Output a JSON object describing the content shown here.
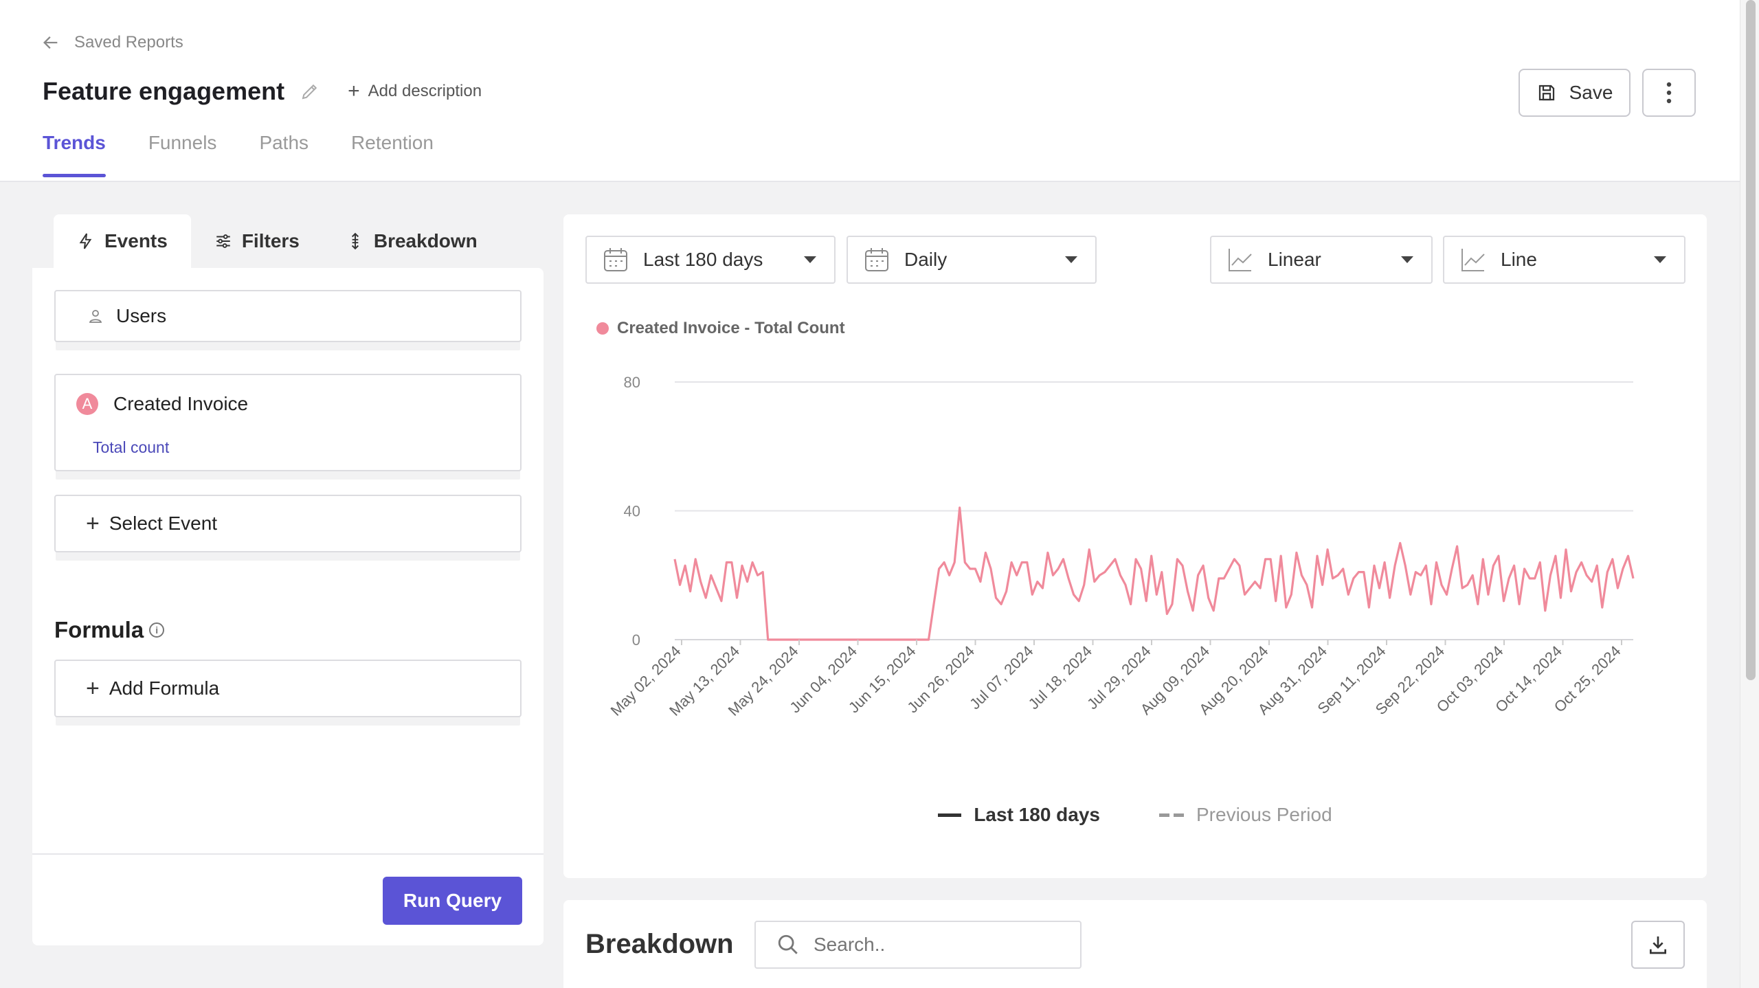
{
  "header": {
    "back_label": "Saved Reports",
    "title": "Feature engagement",
    "add_description_label": "Add description",
    "save_label": "Save",
    "tabs": [
      {
        "label": "Trends",
        "active": true
      },
      {
        "label": "Funnels",
        "active": false
      },
      {
        "label": "Paths",
        "active": false
      },
      {
        "label": "Retention",
        "active": false
      }
    ]
  },
  "left_panel": {
    "tabs": [
      {
        "label": "Events",
        "icon": "bolt-icon",
        "active": true
      },
      {
        "label": "Filters",
        "icon": "sliders-icon",
        "active": false
      },
      {
        "label": "Breakdown",
        "icon": "sort-icon",
        "active": false
      }
    ],
    "users_label": "Users",
    "event": {
      "badge": "A",
      "name": "Created Invoice",
      "metric": "Total count"
    },
    "select_event_label": "Select Event",
    "formula_title": "Formula",
    "add_formula_label": "Add Formula",
    "run_query_label": "Run Query"
  },
  "controls": {
    "date_range": "Last 180 days",
    "interval": "Daily",
    "scale": "Linear",
    "chart_type": "Line"
  },
  "legend": {
    "series_label": "Created Invoice - Total Count",
    "current_label": "Last 180 days",
    "previous_label": "Previous Period"
  },
  "colors": {
    "accent": "#5b54d6",
    "series": "#f08a9b"
  },
  "chart_data": {
    "type": "line",
    "series": [
      {
        "name": "Created Invoice - Total Count",
        "values": [
          25,
          17,
          23,
          15,
          25,
          18,
          13,
          20,
          16,
          12,
          24,
          24,
          13,
          23,
          18,
          24,
          20,
          21,
          0,
          0,
          0,
          0,
          0,
          0,
          0,
          0,
          0,
          0,
          0,
          0,
          0,
          0,
          0,
          0,
          0,
          0,
          0,
          0,
          0,
          0,
          0,
          0,
          0,
          0,
          0,
          0,
          0,
          0,
          0,
          0,
          11,
          22,
          24,
          20,
          24,
          41,
          24,
          22,
          22,
          18,
          27,
          22,
          13,
          11,
          15,
          24,
          20,
          24,
          24,
          14,
          18,
          16,
          27,
          20,
          22,
          25,
          19,
          14,
          12,
          17,
          28,
          18,
          20,
          21,
          23,
          25,
          20,
          17,
          11,
          25,
          22,
          12,
          26,
          14,
          21,
          8,
          11,
          25,
          23,
          15,
          9,
          20,
          23,
          13,
          9,
          19,
          19,
          22,
          25,
          23,
          14,
          16,
          18,
          16,
          25,
          25,
          12,
          26,
          10,
          14,
          27,
          20,
          17,
          10,
          26,
          17,
          28,
          19,
          20,
          22,
          14,
          19,
          21,
          21,
          10,
          23,
          16,
          24,
          13,
          23,
          30,
          23,
          14,
          21,
          20,
          23,
          11,
          24,
          17,
          14,
          22,
          29,
          16,
          17,
          20,
          11,
          25,
          14,
          23,
          26,
          12,
          19,
          23,
          11,
          22,
          19,
          19,
          24,
          9,
          20,
          26,
          13,
          28,
          15,
          21,
          24,
          20,
          18,
          23,
          10,
          21,
          25,
          16,
          22,
          26,
          19
        ]
      }
    ],
    "x_ticks": [
      "May 02, 2024",
      "May 13, 2024",
      "May 24, 2024",
      "Jun 04, 2024",
      "Jun 15, 2024",
      "Jun 26, 2024",
      "Jul 07, 2024",
      "Jul 18, 2024",
      "Jul 29, 2024",
      "Aug 09, 2024",
      "Aug 20, 2024",
      "Aug 31, 2024",
      "Sep 11, 2024",
      "Sep 22, 2024",
      "Oct 03, 2024",
      "Oct 14, 2024",
      "Oct 25, 2024"
    ],
    "y_ticks": [
      0,
      40,
      80
    ],
    "ylim": [
      0,
      80
    ],
    "grid": true,
    "legend_position": "top-left"
  },
  "breakdown": {
    "title": "Breakdown",
    "search_placeholder": "Search.."
  }
}
